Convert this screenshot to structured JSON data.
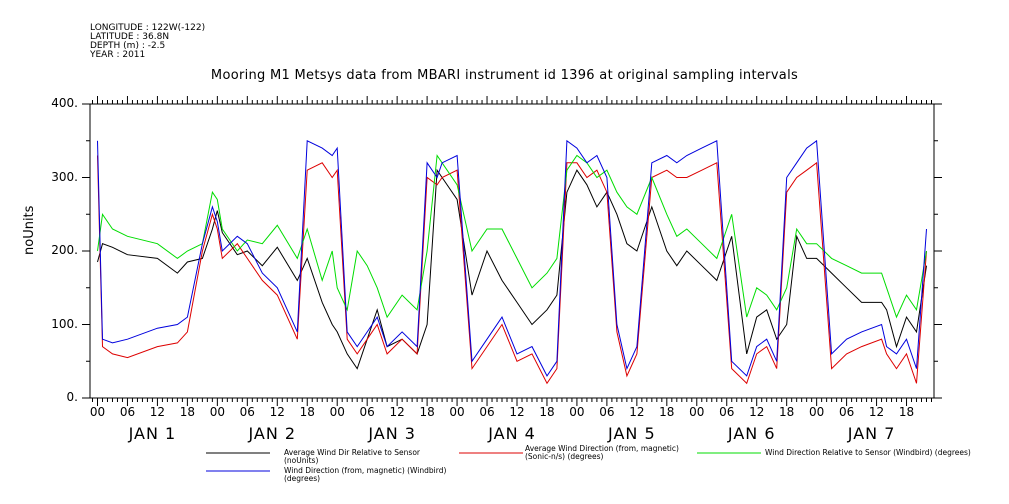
{
  "meta": {
    "longitude": "LONGITUDE : 122W(-122)",
    "latitude": "LATITUDE : 36.8N",
    "depth": "DEPTH (m) : -2.5",
    "year": "YEAR : 2011"
  },
  "chart_data": {
    "type": "line",
    "title": "Mooring M1 Metsys data from MBARI instrument id 1396 at original sampling intervals",
    "xlabel": "",
    "ylabel": "noUnits",
    "ylim": [
      0,
      400
    ],
    "yticks": [
      "0.",
      "100.",
      "200.",
      "300.",
      "400."
    ],
    "xlim_hours": [
      -1.5,
      167.5
    ],
    "hour_ticks": [
      "00",
      "06",
      "12",
      "18"
    ],
    "day_labels": [
      "JAN  1",
      "JAN  2",
      "JAN  3",
      "JAN  4",
      "JAN  5",
      "JAN  6",
      "JAN  7"
    ],
    "x_hours": [
      0,
      1,
      3,
      6,
      12,
      16,
      18,
      21,
      23,
      24,
      25,
      28,
      30,
      33,
      36,
      40,
      42,
      45,
      47,
      48,
      50,
      52,
      54,
      56,
      58,
      61,
      64,
      66,
      68,
      69,
      72,
      75,
      78,
      81,
      84,
      87,
      90,
      92,
      94,
      96,
      98,
      100,
      102,
      104,
      106,
      108,
      111,
      114,
      116,
      118,
      121,
      124,
      127,
      130,
      132,
      134,
      136,
      138,
      140,
      142,
      144,
      147,
      150,
      153,
      157,
      158,
      160,
      162,
      164,
      166
    ],
    "series": [
      {
        "name": "Average Wind Dir Relative to Sensor (noUnits)",
        "color": "#000000",
        "values": [
          185,
          210,
          205,
          195,
          190,
          170,
          185,
          190,
          230,
          255,
          225,
          195,
          200,
          180,
          205,
          160,
          190,
          130,
          100,
          90,
          60,
          40,
          80,
          120,
          70,
          80,
          60,
          100,
          310,
          300,
          270,
          140,
          200,
          160,
          130,
          100,
          120,
          140,
          280,
          310,
          290,
          260,
          280,
          250,
          210,
          200,
          260,
          200,
          180,
          200,
          180,
          160,
          220,
          60,
          110,
          120,
          80,
          100,
          220,
          190,
          190,
          170,
          150,
          130,
          130,
          120,
          70,
          110,
          90,
          180
        ]
      },
      {
        "name": "Average Wind Direction (from, magnetic) (Sonic-n/s) (degrees)",
        "color": "#dd0000",
        "values": [
          330,
          70,
          60,
          55,
          70,
          75,
          90,
          200,
          250,
          230,
          190,
          210,
          190,
          160,
          140,
          80,
          310,
          320,
          300,
          310,
          80,
          60,
          80,
          100,
          60,
          80,
          60,
          300,
          290,
          300,
          310,
          40,
          70,
          100,
          50,
          60,
          20,
          40,
          320,
          320,
          300,
          310,
          280,
          90,
          30,
          60,
          300,
          310,
          300,
          300,
          310,
          320,
          40,
          20,
          60,
          70,
          40,
          280,
          300,
          310,
          320,
          40,
          60,
          70,
          80,
          60,
          40,
          60,
          20,
          200
        ]
      },
      {
        "name": "Wind Direction Relative to Sensor (Windbird) (degrees)",
        "color": "#00dd00",
        "values": [
          200,
          250,
          230,
          220,
          210,
          190,
          200,
          210,
          280,
          270,
          230,
          200,
          215,
          210,
          235,
          190,
          230,
          160,
          200,
          150,
          120,
          200,
          180,
          150,
          110,
          140,
          120,
          200,
          330,
          320,
          290,
          200,
          230,
          230,
          190,
          150,
          170,
          190,
          310,
          330,
          320,
          300,
          310,
          280,
          260,
          250,
          300,
          250,
          220,
          230,
          210,
          190,
          250,
          110,
          150,
          140,
          120,
          150,
          230,
          210,
          210,
          190,
          180,
          170,
          170,
          150,
          110,
          140,
          120,
          200
        ]
      },
      {
        "name": "Wind Direction (from, magnetic) (Windbird) (degrees)",
        "color": "#0000dd",
        "values": [
          350,
          80,
          75,
          80,
          95,
          100,
          110,
          210,
          260,
          240,
          200,
          220,
          210,
          170,
          150,
          90,
          350,
          340,
          330,
          340,
          90,
          70,
          90,
          110,
          70,
          90,
          70,
          320,
          300,
          320,
          330,
          50,
          80,
          110,
          60,
          70,
          30,
          50,
          350,
          340,
          320,
          330,
          300,
          100,
          40,
          70,
          320,
          330,
          320,
          330,
          340,
          350,
          50,
          30,
          70,
          80,
          50,
          300,
          320,
          340,
          350,
          60,
          80,
          90,
          100,
          70,
          60,
          80,
          40,
          230
        ]
      }
    ]
  }
}
